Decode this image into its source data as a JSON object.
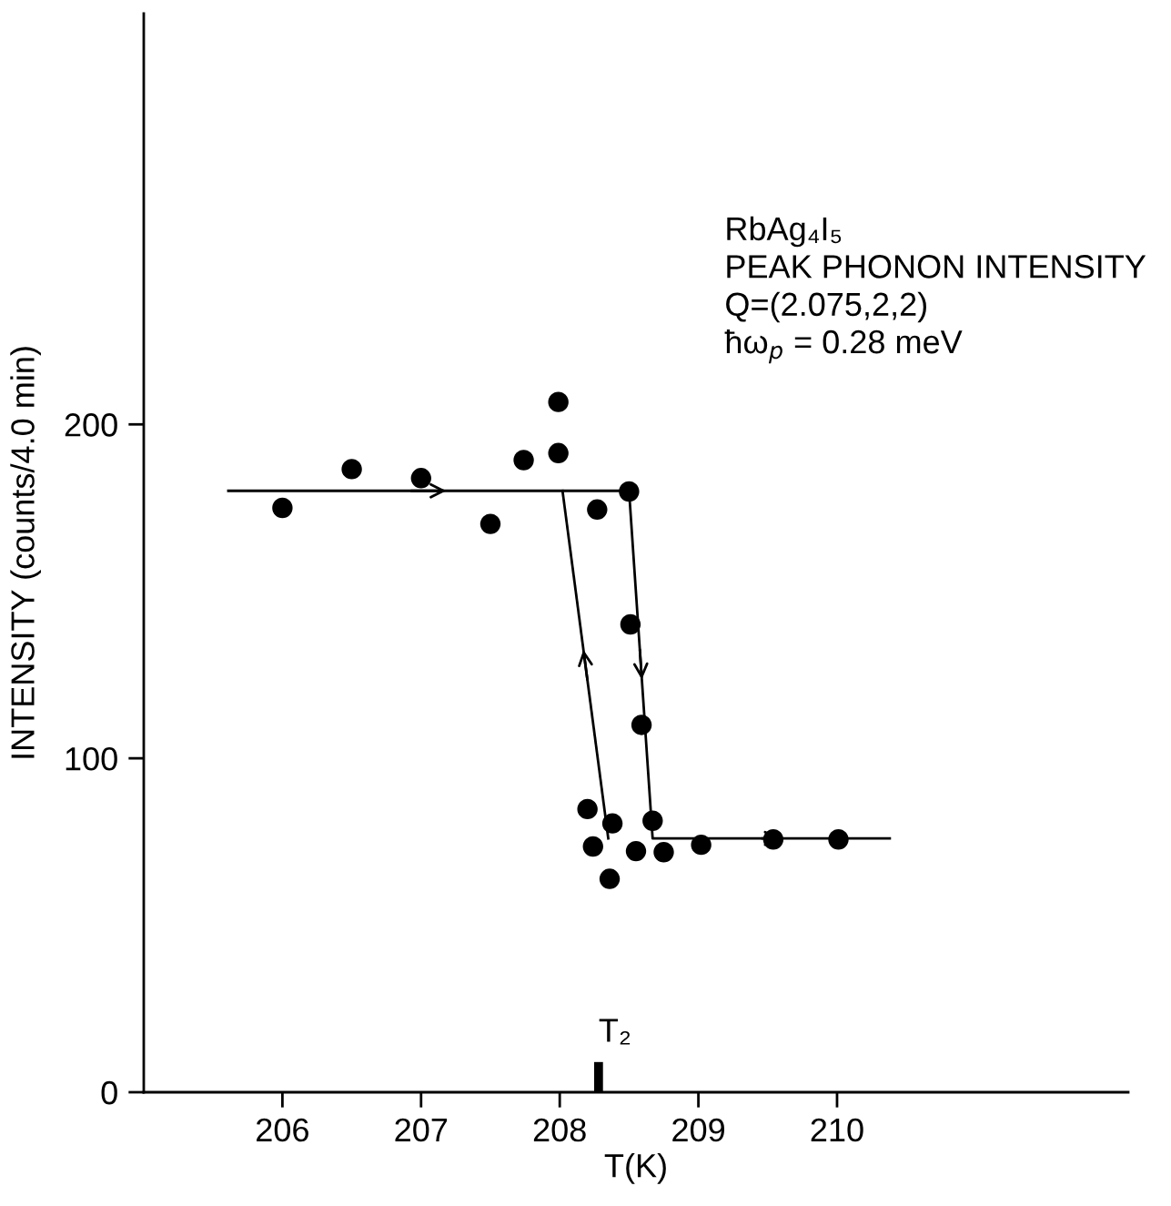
{
  "chart_data": {
    "type": "scatter",
    "xlabel": "T(K)",
    "ylabel": "INTENSITY (counts/4.0 min)",
    "xlim": [
      205,
      212.1
    ],
    "ylim": [
      0,
      323
    ],
    "xticks": [
      206,
      207,
      208,
      209,
      210
    ],
    "yticks": [
      0,
      100,
      200
    ],
    "grid": false,
    "legend": false,
    "series": [
      {
        "marker": "circle",
        "color": "#000000",
        "x": [
          206.0,
          206.5,
          207.0,
          207.5,
          207.74,
          207.99,
          207.99,
          208.5,
          208.27,
          208.51,
          208.59,
          208.67,
          208.2,
          208.24,
          208.38,
          208.36,
          208.55,
          208.75,
          209.02,
          209.54,
          210.01
        ],
        "values": [
          175,
          186.6,
          183.9,
          170.2,
          189.3,
          206.7,
          191.4,
          179.9,
          174.5,
          140.1,
          110,
          81.3,
          84.8,
          73.6,
          80.5,
          63.9,
          72.2,
          71.9,
          74.1,
          75.7,
          75.7
        ]
      },
      {
        "type": "line",
        "marker": "none",
        "line_style": "solid",
        "color": "#000000",
        "x": [
          205.61,
          208.5,
          208.67,
          210.38
        ],
        "values": [
          180.1,
          180.1,
          76,
          76
        ]
      },
      {
        "type": "line",
        "marker": "none",
        "line_style": "solid",
        "color": "#000000",
        "x": [
          208.35,
          208.02
        ],
        "values": [
          76,
          180.1
        ]
      }
    ],
    "ref_lines": [
      {
        "axis": "x",
        "value": 208.28,
        "label": "T₂",
        "color": "#000000"
      }
    ],
    "annotations": [
      "RbAg₄I₅",
      "PEAK PHONON INTENSITY",
      "Q=(2.075,2,2)",
      "ħω$_{p}$ = 0.28 meV"
    ]
  }
}
